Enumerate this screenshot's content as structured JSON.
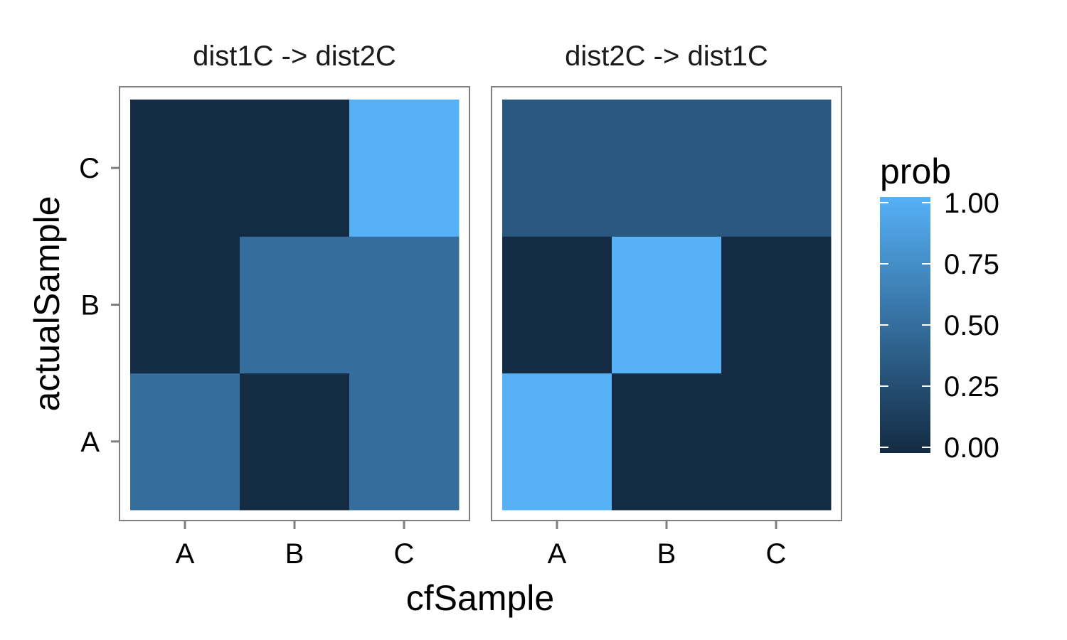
{
  "chart_data": {
    "type": "heatmap",
    "xlabel": "cfSample",
    "ylabel": "actualSample",
    "x_categories": [
      "A",
      "B",
      "C"
    ],
    "y_categories": [
      "A",
      "B",
      "C"
    ],
    "legend": {
      "title": "prob",
      "placement": "right",
      "range": [
        0,
        1
      ],
      "ticks": [
        "0.00",
        "0.25",
        "0.50",
        "0.75",
        "1.00"
      ],
      "low_color": "#132B43",
      "high_color": "#56B1F7"
    },
    "panels": [
      {
        "title": "dist1C -> dist2C",
        "cells": [
          {
            "x": "A",
            "y": "A",
            "value": 0.5
          },
          {
            "x": "B",
            "y": "A",
            "value": 0.0
          },
          {
            "x": "C",
            "y": "A",
            "value": 0.5
          },
          {
            "x": "A",
            "y": "B",
            "value": 0.0
          },
          {
            "x": "B",
            "y": "B",
            "value": 0.5
          },
          {
            "x": "C",
            "y": "B",
            "value": 0.5
          },
          {
            "x": "A",
            "y": "C",
            "value": 0.0
          },
          {
            "x": "B",
            "y": "C",
            "value": 0.0
          },
          {
            "x": "C",
            "y": "C",
            "value": 1.0
          }
        ]
      },
      {
        "title": "dist2C -> dist1C",
        "cells": [
          {
            "x": "A",
            "y": "A",
            "value": 1.0
          },
          {
            "x": "B",
            "y": "A",
            "value": 0.0
          },
          {
            "x": "C",
            "y": "A",
            "value": 0.0
          },
          {
            "x": "A",
            "y": "B",
            "value": 0.0
          },
          {
            "x": "B",
            "y": "B",
            "value": 1.0
          },
          {
            "x": "C",
            "y": "B",
            "value": 0.0
          },
          {
            "x": "A",
            "y": "C",
            "value": 0.33
          },
          {
            "x": "B",
            "y": "C",
            "value": 0.33
          },
          {
            "x": "C",
            "y": "C",
            "value": 0.33
          }
        ]
      }
    ],
    "grid": false
  }
}
